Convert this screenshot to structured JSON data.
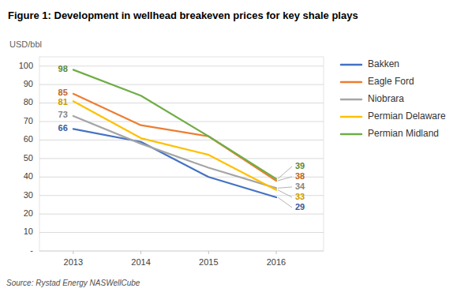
{
  "chart_data": {
    "type": "line",
    "title": "Figure 1: Development in wellhead breakeven prices for key shale plays",
    "y_label": "USD/bbl",
    "source": "Source: Rystad Energy NASWellCube",
    "x": [
      2013,
      2014,
      2015,
      2016
    ],
    "series": [
      {
        "name": "Bakken",
        "color": "#4472C4",
        "values": [
          66,
          59,
          40,
          29
        ]
      },
      {
        "name": "Eagle Ford",
        "color": "#ED7D31",
        "values": [
          85,
          68,
          62,
          38
        ]
      },
      {
        "name": "Niobrara",
        "color": "#A5A5A5",
        "values": [
          73,
          58,
          45,
          34
        ]
      },
      {
        "name": "Permian Delaware",
        "color": "#FFC000",
        "values": [
          81,
          61,
          52,
          33
        ]
      },
      {
        "name": "Permian Midland",
        "color": "#70AD47",
        "values": [
          98,
          84,
          62,
          39
        ]
      }
    ],
    "xlim": [
      2012.5,
      2016.7
    ],
    "xticks": [
      2013,
      2014,
      2015,
      2016
    ],
    "ylim": [
      0,
      105
    ],
    "yticks": [
      {
        "value": 0,
        "label": "-"
      },
      10,
      20,
      30,
      40,
      50,
      60,
      70,
      80,
      90,
      100
    ],
    "grid": true,
    "legend": "right",
    "data_labels": true
  }
}
